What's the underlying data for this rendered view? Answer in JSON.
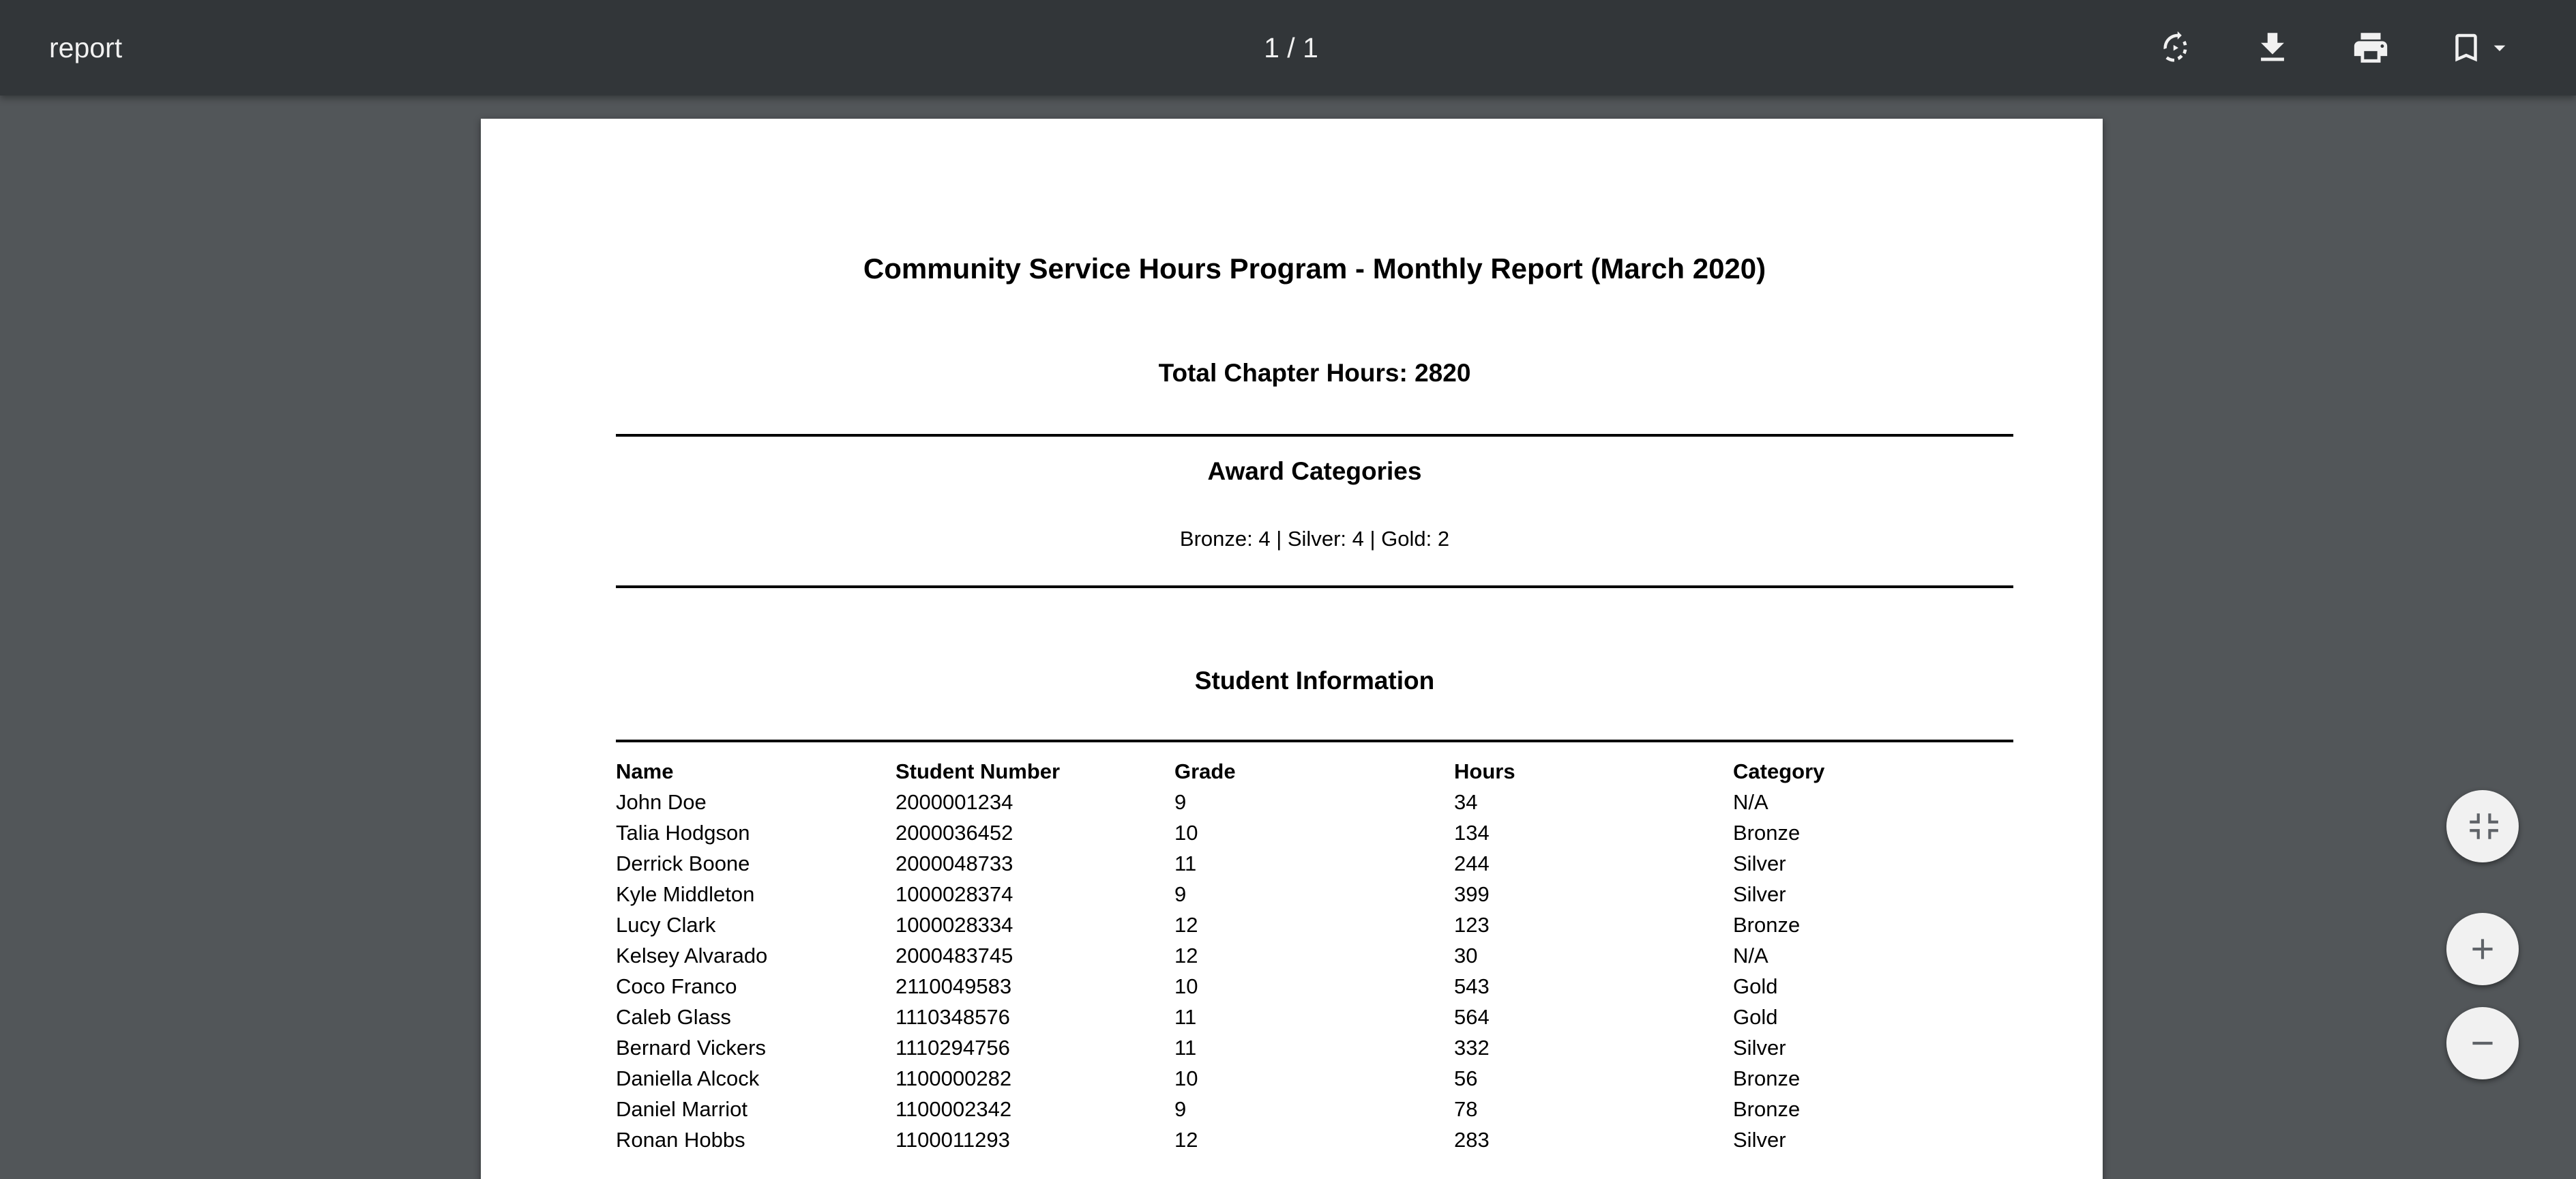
{
  "toolbar": {
    "title": "report",
    "page_indicator": "1 / 1",
    "icons": [
      "rotate-icon",
      "download-icon",
      "print-icon",
      "bookmark-icon",
      "dropdown-arrow-icon"
    ]
  },
  "zoom_controls": {
    "icons": [
      "fit-to-page-icon",
      "zoom-in-icon",
      "zoom-out-icon"
    ]
  },
  "report": {
    "title": "Community Service Hours Program - Monthly Report (March 2020)",
    "total_hours": "Total Chapter Hours: 2820",
    "award_heading": "Award Categories",
    "award_summary": "Bronze: 4 | Silver: 4 | Gold: 2",
    "student_heading": "Student Information",
    "columns": [
      "Name",
      "Student Number",
      "Grade",
      "Hours",
      "Category"
    ],
    "rows": [
      [
        "John Doe",
        "2000001234",
        "9",
        "34",
        "N/A"
      ],
      [
        "Talia Hodgson",
        "2000036452",
        "10",
        "134",
        "Bronze"
      ],
      [
        "Derrick Boone",
        "2000048733",
        "11",
        "244",
        "Silver"
      ],
      [
        "Kyle Middleton",
        "1000028374",
        "9",
        "399",
        "Silver"
      ],
      [
        "Lucy Clark",
        "1000028334",
        "12",
        "123",
        "Bronze"
      ],
      [
        "Kelsey Alvarado",
        "2000483745",
        "12",
        "30",
        "N/A"
      ],
      [
        "Coco Franco",
        "2110049583",
        "10",
        "543",
        "Gold"
      ],
      [
        "Caleb Glass",
        "1110348576",
        "11",
        "564",
        "Gold"
      ],
      [
        "Bernard Vickers",
        "1110294756",
        "11",
        "332",
        "Silver"
      ],
      [
        "Daniella Alcock",
        "1100000282",
        "10",
        "56",
        "Bronze"
      ],
      [
        "Daniel Marriot",
        "1100002342",
        "9",
        "78",
        "Bronze"
      ],
      [
        "Ronan Hobbs",
        "1100011293",
        "12",
        "283",
        "Silver"
      ]
    ]
  }
}
